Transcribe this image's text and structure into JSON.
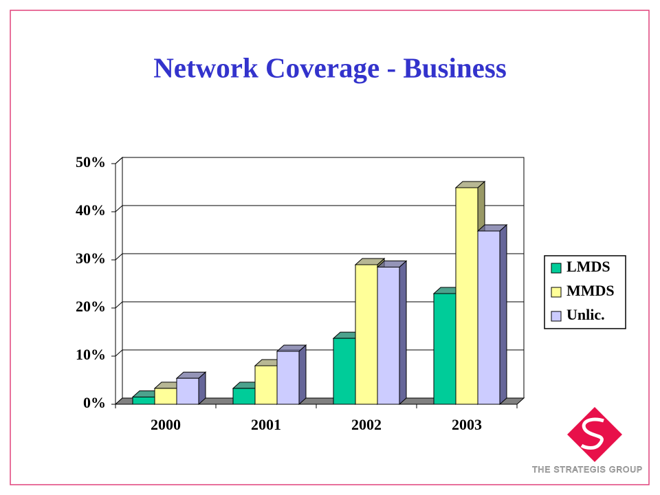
{
  "chart_data": {
    "type": "bar3d",
    "title": "Network Coverage - Business",
    "categories": [
      "2000",
      "2001",
      "2002",
      "2003"
    ],
    "series": [
      {
        "name": "LMDS",
        "color": "#00cc99",
        "side_color": "#007a5c",
        "values": [
          1.5,
          3.3,
          13.7,
          23
        ]
      },
      {
        "name": "MMDS",
        "color": "#ffff99",
        "side_color": "#999966",
        "values": [
          3.3,
          8,
          29,
          45
        ]
      },
      {
        "name": "Unlic.",
        "color": "#ccccff",
        "side_color": "#666699",
        "values": [
          5.4,
          11,
          28.5,
          36
        ]
      }
    ],
    "ylim": [
      0,
      50
    ],
    "yticks": [
      {
        "value": 0,
        "label": "0%"
      },
      {
        "value": 10,
        "label": "10%"
      },
      {
        "value": 20,
        "label": "20%"
      },
      {
        "value": 30,
        "label": "30%"
      },
      {
        "value": 40,
        "label": "40%"
      },
      {
        "value": 50,
        "label": "50%"
      }
    ],
    "grid": true,
    "legend": "right"
  },
  "logo_text": "The Strategis Group"
}
